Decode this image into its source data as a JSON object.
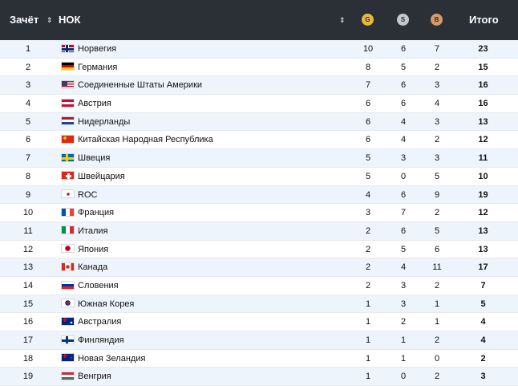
{
  "header": {
    "rank_label": "Зачёт",
    "noc_label": "НОК",
    "gold_badge": "G",
    "silver_badge": "S",
    "bronze_badge": "B",
    "total_label": "Итого",
    "sort_icon": "sort-arrows-icon"
  },
  "colors": {
    "header_bg": "#2b2f36",
    "gold": "#e9b640",
    "silver": "#c4c7cc",
    "bronze": "#d59a6a",
    "alt_row": "#eef4fb"
  },
  "rows": [
    {
      "rank": "1",
      "country": "Норвегия",
      "flag": "norway-flag",
      "gold": "10",
      "silver": "6",
      "bronze": "7",
      "total": "23"
    },
    {
      "rank": "2",
      "country": "Германия",
      "flag": "germany-flag",
      "gold": "8",
      "silver": "5",
      "bronze": "2",
      "total": "15"
    },
    {
      "rank": "3",
      "country": "Соединенные Штаты Америки",
      "flag": "usa-flag",
      "gold": "7",
      "silver": "6",
      "bronze": "3",
      "total": "16"
    },
    {
      "rank": "4",
      "country": "Австрия",
      "flag": "austria-flag",
      "gold": "6",
      "silver": "6",
      "bronze": "4",
      "total": "16"
    },
    {
      "rank": "5",
      "country": "Нидерланды",
      "flag": "netherlands-flag",
      "gold": "6",
      "silver": "4",
      "bronze": "3",
      "total": "13"
    },
    {
      "rank": "6",
      "country": "Китайская Народная Республика",
      "flag": "china-flag",
      "gold": "6",
      "silver": "4",
      "bronze": "2",
      "total": "12"
    },
    {
      "rank": "7",
      "country": "Швеция",
      "flag": "sweden-flag",
      "gold": "5",
      "silver": "3",
      "bronze": "3",
      "total": "11"
    },
    {
      "rank": "8",
      "country": "Швейцария",
      "flag": "switzerland-flag",
      "gold": "5",
      "silver": "0",
      "bronze": "5",
      "total": "10"
    },
    {
      "rank": "9",
      "country": "ROC",
      "flag": "roc-flag",
      "gold": "4",
      "silver": "6",
      "bronze": "9",
      "total": "19"
    },
    {
      "rank": "10",
      "country": "Франция",
      "flag": "france-flag",
      "gold": "3",
      "silver": "7",
      "bronze": "2",
      "total": "12"
    },
    {
      "rank": "11",
      "country": "Италия",
      "flag": "italy-flag",
      "gold": "2",
      "silver": "6",
      "bronze": "5",
      "total": "13"
    },
    {
      "rank": "12",
      "country": "Япония",
      "flag": "japan-flag",
      "gold": "2",
      "silver": "5",
      "bronze": "6",
      "total": "13"
    },
    {
      "rank": "13",
      "country": "Канада",
      "flag": "canada-flag",
      "gold": "2",
      "silver": "4",
      "bronze": "11",
      "total": "17"
    },
    {
      "rank": "14",
      "country": "Словения",
      "flag": "slovenia-flag",
      "gold": "2",
      "silver": "3",
      "bronze": "2",
      "total": "7"
    },
    {
      "rank": "15",
      "country": "Южная Корея",
      "flag": "south-korea-flag",
      "gold": "1",
      "silver": "3",
      "bronze": "1",
      "total": "5"
    },
    {
      "rank": "16",
      "country": "Австралия",
      "flag": "australia-flag",
      "gold": "1",
      "silver": "2",
      "bronze": "1",
      "total": "4"
    },
    {
      "rank": "17",
      "country": "Финляндия",
      "flag": "finland-flag",
      "gold": "1",
      "silver": "1",
      "bronze": "2",
      "total": "4"
    },
    {
      "rank": "18",
      "country": "Новая Зеландия",
      "flag": "new-zealand-flag",
      "gold": "1",
      "silver": "1",
      "bronze": "0",
      "total": "2"
    },
    {
      "rank": "19",
      "country": "Венгрия",
      "flag": "hungary-flag",
      "gold": "1",
      "silver": "0",
      "bronze": "2",
      "total": "3"
    }
  ]
}
